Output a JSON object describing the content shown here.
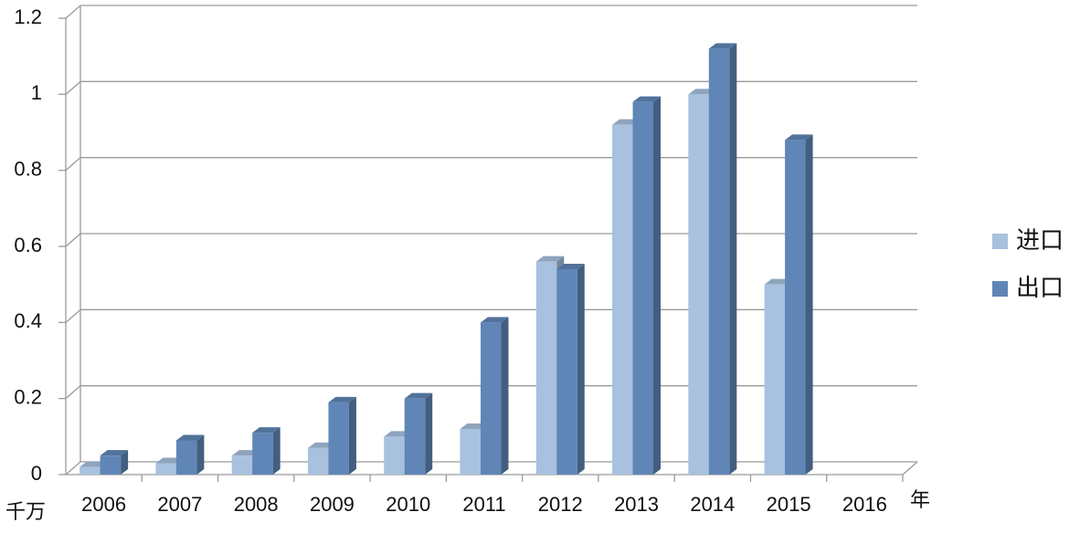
{
  "chart_data": {
    "type": "bar3d",
    "y_unit": "千万",
    "x_unit": "年",
    "categories": [
      "2006",
      "2007",
      "2008",
      "2009",
      "2010",
      "2011",
      "2012",
      "2013",
      "2014",
      "2015",
      "2016"
    ],
    "series": [
      {
        "name": "进口",
        "color": "#a7c1de",
        "values": [
          0.02,
          0.03,
          0.05,
          0.07,
          0.1,
          0.12,
          0.56,
          0.92,
          1.0,
          0.5,
          null
        ]
      },
      {
        "name": "出口",
        "color": "#5f86b6",
        "values": [
          0.05,
          0.09,
          0.11,
          0.19,
          0.2,
          0.4,
          0.54,
          0.98,
          1.12,
          0.88,
          null
        ]
      }
    ],
    "ylim": [
      0,
      1.2
    ],
    "yticks": [
      0,
      0.2,
      0.4,
      0.6,
      0.8,
      1,
      1.2
    ],
    "grid": true,
    "legend": "right"
  }
}
